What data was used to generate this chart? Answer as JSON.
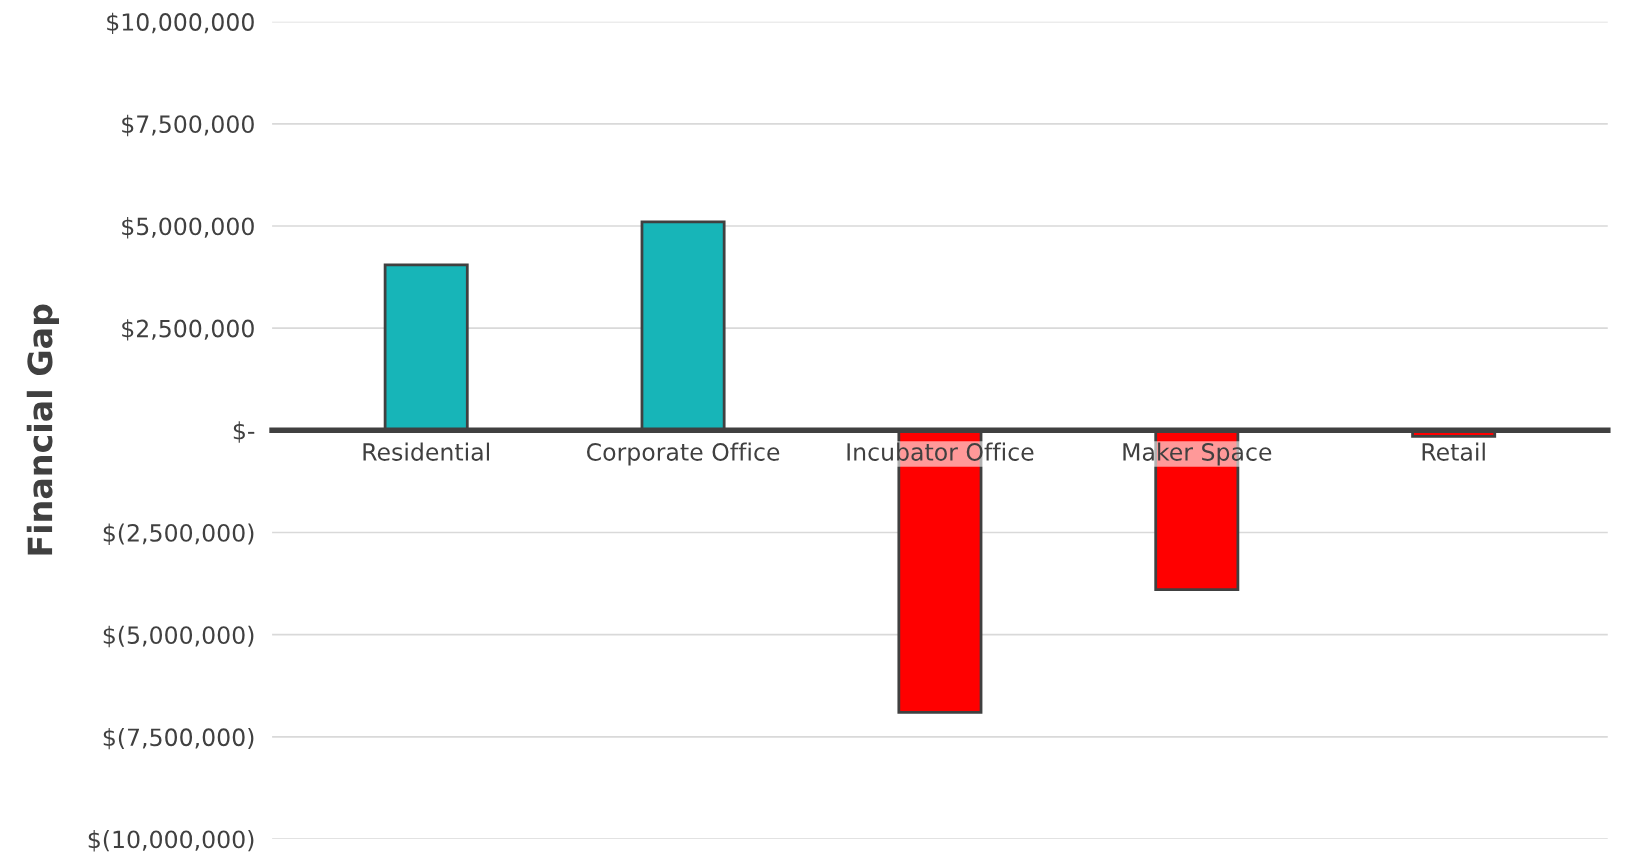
{
  "chart_data": {
    "type": "bar",
    "ylabel": "Financial Gap",
    "categories": [
      "Residential",
      "Corporate Office",
      "Incubator Office",
      "Maker Space",
      "Retail"
    ],
    "values": [
      4050000,
      5100000,
      -6900000,
      -3900000,
      -150000
    ],
    "colors": [
      "#17b5b8",
      "#17b5b8",
      "#ff0000",
      "#ff0000",
      "#ff0000"
    ],
    "ylim": [
      -10000000,
      10000000
    ],
    "yticks": [
      {
        "value": -10000000,
        "label": "$(10,000,000)"
      },
      {
        "value": -7500000,
        "label": "$(7,500,000)"
      },
      {
        "value": -5000000,
        "label": "$(5,000,000)"
      },
      {
        "value": -2500000,
        "label": "$(2,500,000)"
      },
      {
        "value": 0,
        "label": "$-"
      },
      {
        "value": 2500000,
        "label": "$2,500,000"
      },
      {
        "value": 5000000,
        "label": "$5,000,000"
      },
      {
        "value": 7500000,
        "label": "$7,500,000"
      },
      {
        "value": 10000000,
        "label": "$10,000,000"
      }
    ],
    "grid": "y",
    "legend": false
  }
}
